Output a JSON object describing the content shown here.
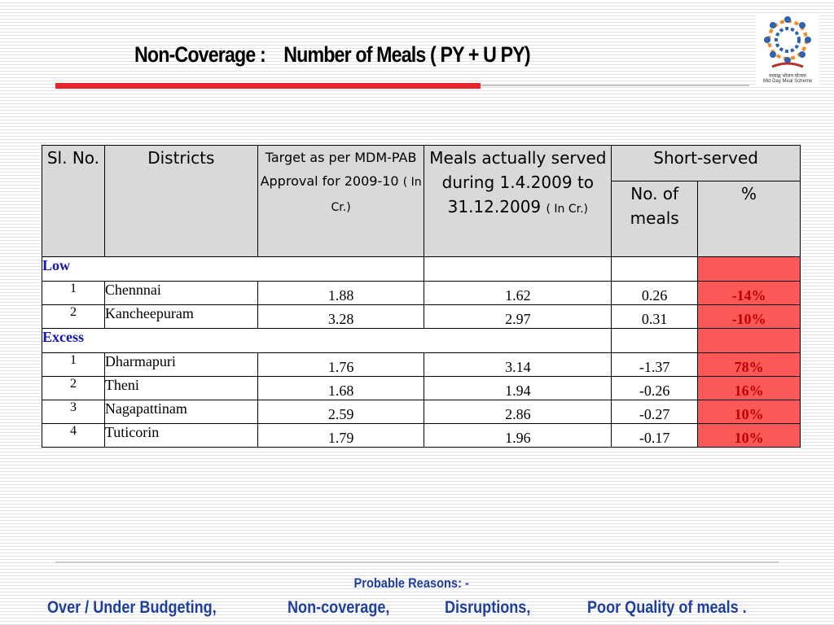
{
  "slide": {
    "title": "Non-Coverage :    Number of Meals ( PY + U PY)",
    "logo": {
      "icon": "mid-day-meal-logo",
      "text_hindi": "मध्याह्न भोजन योजना",
      "text_english": "Mid Day Meal Scheme"
    }
  },
  "table": {
    "headers": {
      "sl_no": "Sl. No.",
      "districts": "Districts",
      "target": "Target as per MDM-PAB Approval for 2009-10",
      "target_unit": "( In Cr.)",
      "served": "Meals actually served during 1.4.2009 to 31.12.2009",
      "served_unit": "( In Cr.)",
      "short_served": "Short-served",
      "no_of_meals": "No. of meals",
      "percent": "%"
    },
    "low": {
      "label": "Low",
      "rows": [
        {
          "sl": "1",
          "district": "Chennnai",
          "target": "1.88",
          "served": "1.62",
          "short": "0.26",
          "pct": "-14%"
        },
        {
          "sl": "2",
          "district": "Kancheepuram",
          "target": "3.28",
          "served": "2.97",
          "short": "0.31",
          "pct": "-10%"
        }
      ]
    },
    "excess": {
      "label": "Excess",
      "rows": [
        {
          "sl": "1",
          "district": "Dharmapuri",
          "target": "1.76",
          "served": "3.14",
          "short": "-1.37",
          "pct": "78%"
        },
        {
          "sl": "2",
          "district": "Theni",
          "target": "1.68",
          "served": "1.94",
          "short": "-0.26",
          "pct": "16%"
        },
        {
          "sl": "3",
          "district": "Nagapattinam",
          "target": "2.59",
          "served": "2.86",
          "short": "-0.27",
          "pct": "10%"
        },
        {
          "sl": "4",
          "district": "Tuticorin",
          "target": "1.79",
          "served": "1.96",
          "short": "-0.17",
          "pct": "10%"
        }
      ]
    }
  },
  "footer": {
    "heading": "Probable Reasons: -",
    "reasons": [
      "Over / Under Budgeting,",
      "Non-coverage,",
      "Disruptions,",
      "Poor Quality of meals ."
    ]
  },
  "colors": {
    "accent_red": "#e8252b",
    "highlight_cell": "#fb5858",
    "footer_blue": "#1f3f9e",
    "group_label_blue": "#1515b0"
  }
}
